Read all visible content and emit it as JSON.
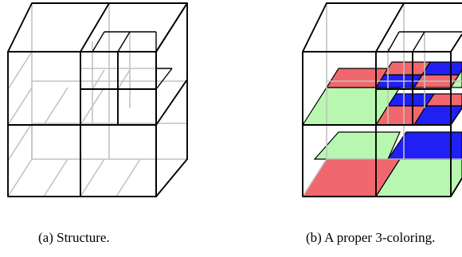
{
  "captions": {
    "a": "(a) Structure.",
    "b": "(b) A proper 3-coloring."
  },
  "coloring": {
    "colors": [
      "red",
      "green",
      "blue"
    ],
    "hex": {
      "red": "#f0686d",
      "green": "#b8f7b0",
      "blue": "#2020f5"
    },
    "outline": "#000000",
    "hidden_edge": "#c2c2c2"
  }
}
